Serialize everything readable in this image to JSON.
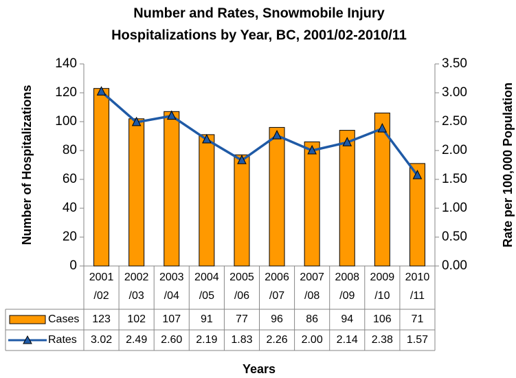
{
  "chart_data": {
    "type": "bar_line_table",
    "title": "Number and Rates, Snowmobile Injury",
    "subtitle": "Hospitalizations by Year, BC, 2001/02-2010/11",
    "y_label": "Number of Hospitalizations",
    "y2_label": "Rate per 100,000 Population",
    "x_label": "Years",
    "categories": [
      "2001/02",
      "2002/03",
      "2003/04",
      "2004/05",
      "2005/06",
      "2006/07",
      "2007/08",
      "2008/09",
      "2009/10",
      "2010/11"
    ],
    "series": [
      {
        "name": "Cases",
        "type": "bar",
        "color": "#ff9900",
        "values": [
          123,
          102,
          107,
          91,
          77,
          96,
          86,
          94,
          106,
          71
        ]
      },
      {
        "name": "Rates",
        "type": "line",
        "axis": "y2",
        "color": "#1f5aa6",
        "values": [
          3.02,
          2.49,
          2.6,
          2.19,
          1.83,
          2.26,
          2.0,
          2.14,
          2.38,
          1.57
        ],
        "value_labels": [
          "3.02",
          "2.49",
          "2.60",
          "2.19",
          "1.83",
          "2.26",
          "2.00",
          "2.14",
          "2.38",
          "1.57"
        ]
      }
    ],
    "ylim": [
      0,
      140
    ],
    "yticks": [
      0,
      20,
      40,
      60,
      80,
      100,
      120,
      140
    ],
    "y2lim": [
      0,
      3.5
    ],
    "y2ticks": [
      {
        "value": 0,
        "label": "0.00"
      },
      {
        "value": 0.5,
        "label": "0.50"
      },
      {
        "value": 1,
        "label": "1.00"
      },
      {
        "value": 1.5,
        "label": "1.50"
      },
      {
        "value": 2,
        "label": "2.00"
      },
      {
        "value": 2.5,
        "label": "2.50"
      },
      {
        "value": 3,
        "label": "3.00"
      },
      {
        "value": 3.5,
        "label": "3.50"
      }
    ]
  }
}
